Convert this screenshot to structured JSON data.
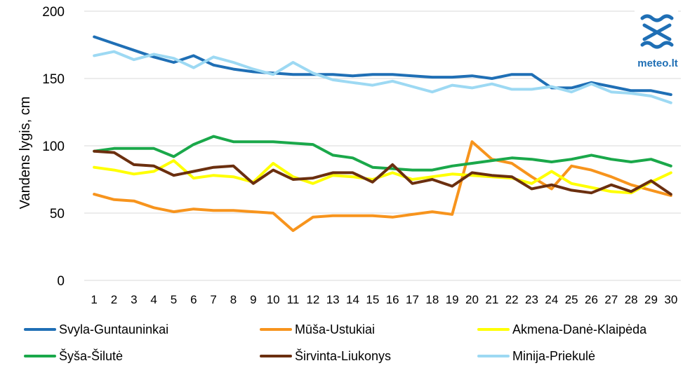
{
  "chart_data": {
    "type": "line",
    "ylabel": "Vandens lygis, cm",
    "xlabel": "",
    "ylim": [
      0,
      200
    ],
    "yticks": [
      0,
      50,
      100,
      150,
      200
    ],
    "grid": "horizontal",
    "legend_position": "bottom",
    "x": [
      1,
      2,
      3,
      4,
      5,
      6,
      7,
      8,
      9,
      10,
      11,
      12,
      13,
      14,
      15,
      16,
      17,
      18,
      19,
      20,
      21,
      22,
      23,
      24,
      25,
      26,
      27,
      28,
      29,
      30
    ],
    "series": [
      {
        "name": "Svyla-Guntauninkai",
        "color": "#1f6fb5",
        "values": [
          181,
          176,
          171,
          166,
          162,
          167,
          160,
          157,
          155,
          154,
          153,
          153,
          153,
          152,
          153,
          153,
          152,
          151,
          151,
          152,
          150,
          153,
          153,
          143,
          143,
          147,
          144,
          141,
          141,
          138
        ]
      },
      {
        "name": "Mūša-Ustukiai",
        "color": "#f7941d",
        "values": [
          64,
          60,
          59,
          54,
          51,
          53,
          52,
          52,
          51,
          50,
          37,
          47,
          48,
          48,
          48,
          47,
          49,
          51,
          49,
          103,
          90,
          87,
          77,
          68,
          85,
          82,
          77,
          71,
          67,
          63
        ]
      },
      {
        "name": "Akmena-Danė-Klaipėda",
        "color": "#ffff00",
        "values": [
          84,
          82,
          79,
          81,
          89,
          76,
          78,
          77,
          73,
          87,
          77,
          72,
          78,
          77,
          75,
          80,
          75,
          77,
          79,
          78,
          77,
          76,
          72,
          81,
          72,
          69,
          66,
          65,
          73,
          80
        ]
      },
      {
        "name": "Šyša-Šilutė",
        "color": "#1aa84a",
        "values": [
          96,
          98,
          98,
          98,
          92,
          101,
          107,
          103,
          103,
          103,
          102,
          101,
          93,
          91,
          84,
          83,
          82,
          82,
          85,
          87,
          89,
          91,
          90,
          88,
          90,
          93,
          90,
          88,
          90,
          85
        ]
      },
      {
        "name": "Širvinta-Liukonys",
        "color": "#6b2f0f",
        "values": [
          96,
          95,
          86,
          85,
          78,
          81,
          84,
          85,
          72,
          82,
          75,
          76,
          80,
          80,
          73,
          86,
          72,
          75,
          70,
          80,
          78,
          77,
          68,
          71,
          67,
          65,
          71,
          66,
          74,
          64
        ]
      },
      {
        "name": "Minija-Priekulė",
        "color": "#9dd9f3",
        "values": [
          167,
          170,
          164,
          168,
          165,
          158,
          166,
          162,
          157,
          153,
          162,
          154,
          149,
          147,
          145,
          148,
          144,
          140,
          145,
          143,
          146,
          142,
          142,
          144,
          140,
          146,
          140,
          139,
          137,
          132
        ]
      }
    ]
  },
  "logo": {
    "text": "meteo.lt"
  }
}
